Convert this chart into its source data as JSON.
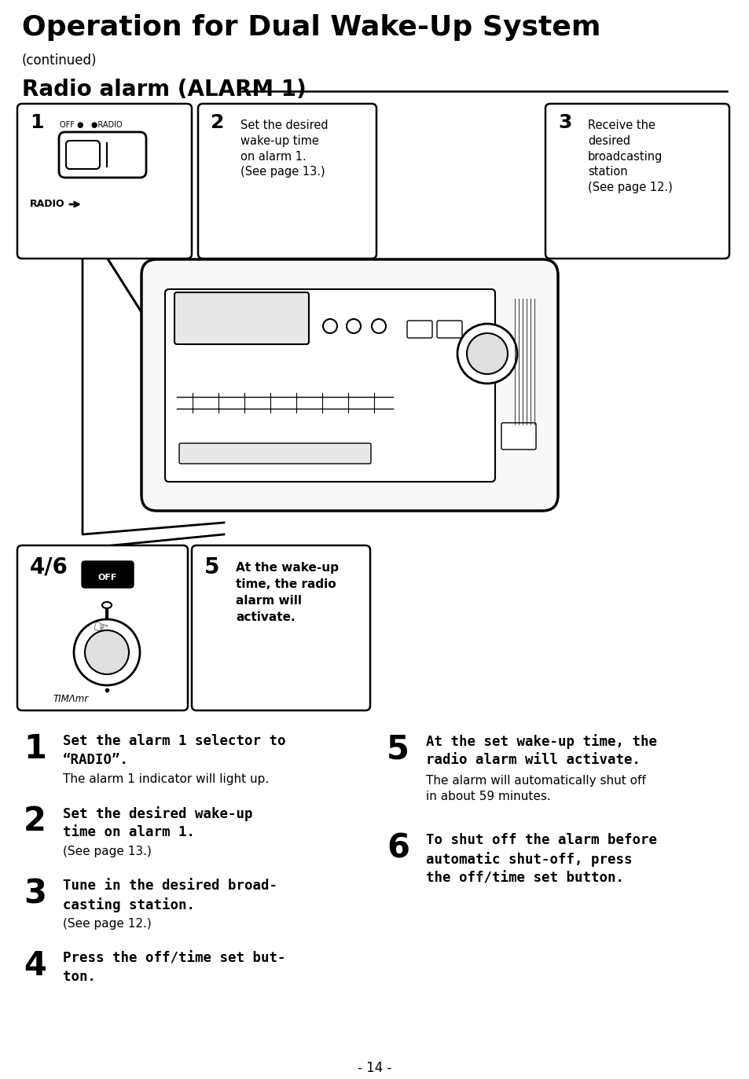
{
  "title": "Operation for Dual Wake-Up System",
  "subtitle": "(continued)",
  "section_title": "Radio alarm (ALARM 1)",
  "bg_color": "#ffffff",
  "text_color": "#000000",
  "box2_text": "Set the desired\nwake-up time\non alarm 1.\n(See page 13.)",
  "box3_text": "Receive the\ndesired\nbroadcasting\nstation\n(See page 12.)",
  "box5_text": "At the wake-up\ntime, the radio\nalarm will\nactivate.",
  "steps": [
    {
      "num": "1",
      "bold": "Set the alarm 1 selector to\n“RADIO”.",
      "normal": "The alarm 1 indicator will light up."
    },
    {
      "num": "2",
      "bold": "Set the desired wake-up\ntime on alarm 1.",
      "normal": "(See page 13.)"
    },
    {
      "num": "3",
      "bold": "Tune in the desired broad-\ncasting station.",
      "normal": "(See page 12.)"
    },
    {
      "num": "4",
      "bold": "Press the off/time set but-\nton.",
      "normal": ""
    }
  ],
  "steps_right": [
    {
      "num": "5",
      "bold": "At the set wake-up time, the\nradio alarm will activate.",
      "normal": "The alarm will automatically shut off\nin about 59 minutes."
    },
    {
      "num": "6",
      "bold": "To shut off the alarm before\nautomatic shut-off, press\nthe off/time set button.",
      "normal": ""
    }
  ],
  "page_num": "- 14 -"
}
